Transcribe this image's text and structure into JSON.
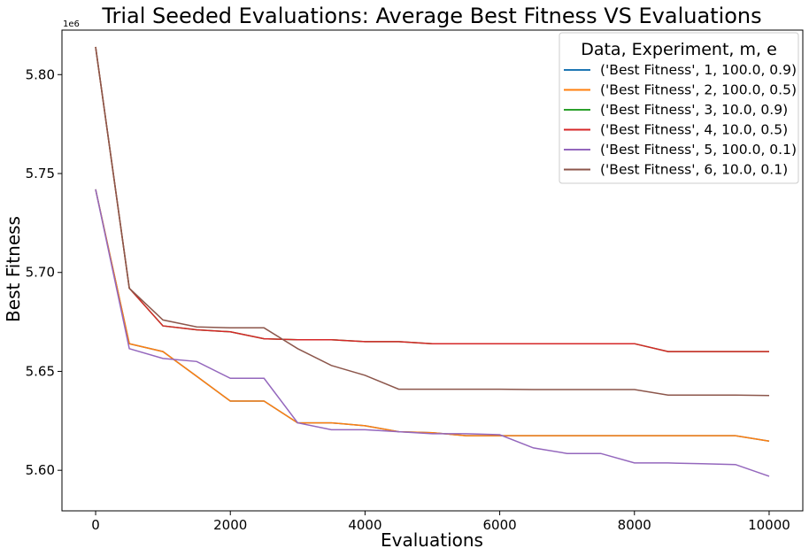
{
  "chart_data": {
    "type": "line",
    "title": "Trial Seeded Evaluations: Average Best Fitness VS Evaluations",
    "xlabel": "Evaluations",
    "ylabel": "Best Fitness",
    "y_multiplier_label": "1e6",
    "xlim": [
      -500,
      10500
    ],
    "ylim": [
      5.5795,
      5.8225
    ],
    "x_ticks": [
      0,
      2000,
      4000,
      6000,
      8000,
      10000
    ],
    "x_tick_labels": [
      "0",
      "2000",
      "4000",
      "6000",
      "8000",
      "10000"
    ],
    "y_ticks": [
      5.6,
      5.65,
      5.7,
      5.75,
      5.8
    ],
    "y_tick_labels": [
      "5.60",
      "5.65",
      "5.70",
      "5.75",
      "5.80"
    ],
    "grid": false,
    "legend_title": "Data, Experiment, m, e",
    "legend_position": "top-right",
    "x": [
      0,
      500,
      1000,
      1500,
      2000,
      2500,
      3000,
      3500,
      4000,
      4500,
      5000,
      5500,
      6000,
      6500,
      7000,
      7500,
      8000,
      8500,
      9000,
      9500,
      10000
    ],
    "series": [
      {
        "name": "('Best Fitness', 1, 100.0, 0.9)",
        "color": "#1f77b4",
        "values": [
          5.742,
          5.664,
          5.66,
          5.6475,
          5.635,
          5.635,
          5.624,
          5.624,
          5.6225,
          5.6195,
          5.619,
          5.6175,
          5.6175,
          5.6175,
          5.6175,
          5.6175,
          5.6175,
          5.6175,
          5.6175,
          5.6175,
          5.6147
        ]
      },
      {
        "name": "('Best Fitness', 2, 100.0, 0.5)",
        "color": "#ff7f0e",
        "values": [
          5.742,
          5.664,
          5.66,
          5.6475,
          5.635,
          5.635,
          5.624,
          5.624,
          5.6225,
          5.6195,
          5.619,
          5.6175,
          5.6175,
          5.6175,
          5.6175,
          5.6175,
          5.6175,
          5.6175,
          5.6175,
          5.6175,
          5.6147
        ]
      },
      {
        "name": "('Best Fitness', 3, 10.0, 0.9)",
        "color": "#2ca02c",
        "values": [
          5.814,
          5.692,
          5.673,
          5.671,
          5.67,
          5.6665,
          5.666,
          5.666,
          5.665,
          5.665,
          5.664,
          5.664,
          5.664,
          5.664,
          5.664,
          5.664,
          5.664,
          5.66,
          5.66,
          5.66,
          5.66
        ]
      },
      {
        "name": "('Best Fitness', 4, 10.0, 0.5)",
        "color": "#d62728",
        "values": [
          5.814,
          5.692,
          5.673,
          5.671,
          5.67,
          5.6665,
          5.666,
          5.666,
          5.665,
          5.665,
          5.664,
          5.664,
          5.664,
          5.664,
          5.664,
          5.664,
          5.664,
          5.66,
          5.66,
          5.66,
          5.66
        ]
      },
      {
        "name": "('Best Fitness', 5, 100.0, 0.1)",
        "color": "#9467bd",
        "values": [
          5.742,
          5.6615,
          5.6565,
          5.655,
          5.6465,
          5.6465,
          5.624,
          5.6205,
          5.6205,
          5.6195,
          5.6185,
          5.6185,
          5.618,
          5.6113,
          5.6085,
          5.6085,
          5.6037,
          5.6037,
          5.6033,
          5.6029,
          5.597
        ]
      },
      {
        "name": "('Best Fitness', 6, 10.0, 0.1)",
        "color": "#8c564b",
        "values": [
          5.814,
          5.692,
          5.676,
          5.6725,
          5.672,
          5.672,
          5.6615,
          5.653,
          5.648,
          5.641,
          5.641,
          5.641,
          5.641,
          5.6408,
          5.6408,
          5.6408,
          5.6408,
          5.638,
          5.638,
          5.638,
          5.6378
        ]
      }
    ]
  }
}
